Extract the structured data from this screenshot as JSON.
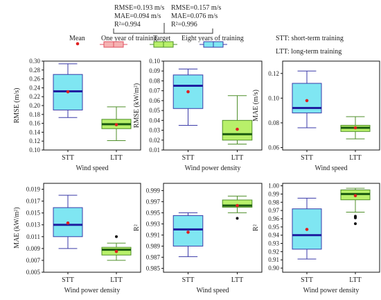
{
  "legend": {
    "mean_label": "Mean",
    "one_year_label": "One year of training",
    "target_label": "Target",
    "eight_years_label": "Eight years of training",
    "one_year_stats": [
      "RMSE=0.193 m/s",
      "MAE=0.094 m/s",
      "R²=0.994"
    ],
    "eight_years_stats": [
      "RMSE=0.157 m/s",
      "MAE=0.076 m/s",
      "R²=0.996"
    ],
    "stt_note": "STT: short-term training",
    "ltt_note": "LTT: long-term training"
  },
  "colors": {
    "stt_fill": "#7fe6f2",
    "stt_stroke": "#3a3aa8",
    "ltt_fill": "#b8f06a",
    "ltt_stroke": "#4f8f2a",
    "median": "#1f1fa0",
    "mean": "#e02020",
    "outlier": "#111111"
  },
  "chart_data": [
    {
      "type": "box",
      "xlabel": "Wind speed",
      "ylabel": "RMSE (m/s)",
      "ylim": [
        0.1,
        0.3
      ],
      "yticks": [
        0.1,
        0.12,
        0.14,
        0.16,
        0.18,
        0.2,
        0.22,
        0.24,
        0.26,
        0.28,
        0.3
      ],
      "ytick_labels": [
        "0.10",
        "0.12",
        "0.14",
        "0.16",
        "0.18",
        "0.20",
        "0.22",
        "0.24",
        "0.26",
        "0.28",
        "0.30"
      ],
      "categories": [
        "STT",
        "LTT"
      ],
      "boxes": [
        {
          "min": 0.173,
          "q1": 0.19,
          "median": 0.232,
          "q3": 0.27,
          "max": 0.294,
          "mean": 0.231,
          "outliers": []
        },
        {
          "min": 0.121,
          "q1": 0.148,
          "median": 0.158,
          "q3": 0.169,
          "max": 0.197,
          "mean": 0.157,
          "outliers": []
        }
      ]
    },
    {
      "type": "box",
      "xlabel": "Wind power density",
      "ylabel": "RMSE (kW/m²)",
      "ylim": [
        0.01,
        0.1
      ],
      "yticks": [
        0.01,
        0.02,
        0.03,
        0.04,
        0.05,
        0.06,
        0.07,
        0.08,
        0.09,
        0.1
      ],
      "ytick_labels": [
        "0.01",
        "0.02",
        "0.03",
        "0.04",
        "0.05",
        "0.06",
        "0.07",
        "0.08",
        "0.09",
        "0.10"
      ],
      "categories": [
        "STT",
        "LTT"
      ],
      "boxes": [
        {
          "min": 0.035,
          "q1": 0.052,
          "median": 0.075,
          "q3": 0.086,
          "max": 0.092,
          "mean": 0.069,
          "outliers": []
        },
        {
          "min": 0.016,
          "q1": 0.02,
          "median": 0.026,
          "q3": 0.04,
          "max": 0.065,
          "mean": 0.031,
          "outliers": []
        }
      ]
    },
    {
      "type": "box",
      "xlabel": "Wind speed",
      "ylabel": "MAE (m/s)",
      "ylim": [
        0.058,
        0.13
      ],
      "yticks": [
        0.06,
        0.08,
        0.1,
        0.12
      ],
      "ytick_labels": [
        "0.06",
        "0.08",
        "0.10",
        "0.12"
      ],
      "categories": [
        "STT",
        "LTT"
      ],
      "boxes": [
        {
          "min": 0.076,
          "q1": 0.088,
          "median": 0.092,
          "q3": 0.112,
          "max": 0.122,
          "mean": 0.098,
          "outliers": []
        },
        {
          "min": 0.067,
          "q1": 0.073,
          "median": 0.076,
          "q3": 0.078,
          "max": 0.085,
          "mean": 0.076,
          "outliers": []
        }
      ]
    },
    {
      "type": "box",
      "xlabel": "Wind power density",
      "ylabel": "MAE (kW/m²)",
      "ylim": [
        0.005,
        0.02
      ],
      "yticks": [
        0.005,
        0.007,
        0.009,
        0.011,
        0.013,
        0.015,
        0.017,
        0.019
      ],
      "ytick_labels": [
        "0.005",
        "0.007",
        "0.009",
        "0.011",
        "0.013",
        "0.015",
        "0.017",
        "0.019"
      ],
      "categories": [
        "STT",
        "LTT"
      ],
      "boxes": [
        {
          "min": 0.009,
          "q1": 0.011,
          "median": 0.013,
          "q3": 0.0159,
          "max": 0.018,
          "mean": 0.0133,
          "outliers": []
        },
        {
          "min": 0.007,
          "q1": 0.0079,
          "median": 0.0088,
          "q3": 0.0092,
          "max": 0.0099,
          "mean": 0.0085,
          "outliers": [
            0.011
          ]
        }
      ]
    },
    {
      "type": "box",
      "xlabel": "Wind speed",
      "ylabel": "R²",
      "ylim": [
        0.9843,
        1.0003
      ],
      "yticks": [
        0.985,
        0.987,
        0.989,
        0.991,
        0.993,
        0.995,
        0.997,
        0.999
      ],
      "ytick_labels": [
        "0.985",
        "0.987",
        "0.989",
        "0.991",
        "0.993",
        "0.995",
        "0.997",
        "0.999"
      ],
      "categories": [
        "STT",
        "LTT"
      ],
      "boxes": [
        {
          "min": 0.9871,
          "q1": 0.989,
          "median": 0.992,
          "q3": 0.9945,
          "max": 0.995,
          "mean": 0.9915,
          "outliers": []
        },
        {
          "min": 0.995,
          "q1": 0.996,
          "median": 0.9963,
          "q3": 0.9973,
          "max": 0.998,
          "mean": 0.9963,
          "outliers": [
            0.994
          ]
        }
      ]
    },
    {
      "type": "box",
      "xlabel": "Wind power density",
      "ylabel": "R²",
      "ylim": [
        0.895,
        1.003
      ],
      "yticks": [
        0.9,
        0.91,
        0.92,
        0.93,
        0.94,
        0.95,
        0.96,
        0.97,
        0.98,
        0.99,
        1.0
      ],
      "ytick_labels": [
        "0.90",
        "0.91",
        "0.92",
        "0.93",
        "0.94",
        "0.95",
        "0.96",
        "0.97",
        "0.98",
        "0.99",
        "1.00"
      ],
      "categories": [
        "STT",
        "LTT"
      ],
      "boxes": [
        {
          "min": 0.911,
          "q1": 0.923,
          "median": 0.94,
          "q3": 0.972,
          "max": 0.985,
          "mean": 0.947,
          "outliers": []
        },
        {
          "min": 0.968,
          "q1": 0.983,
          "median": 0.99,
          "q3": 0.995,
          "max": 0.997,
          "mean": 0.988,
          "outliers": [
            0.963,
            0.962,
            0.961,
            0.954
          ]
        }
      ]
    }
  ]
}
